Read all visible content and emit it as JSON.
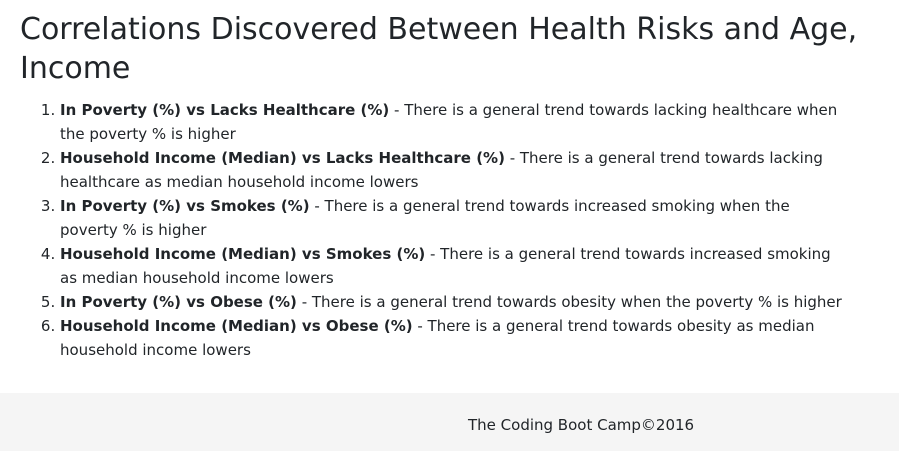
{
  "page": {
    "title": "Correlations Discovered Between Health Risks and Age, Income"
  },
  "correlations": [
    {
      "label": "In Poverty (%) vs Lacks Healthcare (%)",
      "description": " - There is a general trend towards lacking healthcare when the poverty % is higher"
    },
    {
      "label": "Household Income (Median) vs Lacks Healthcare (%)",
      "description": " - There is a general trend towards lacking healthcare as median household income lowers"
    },
    {
      "label": "In Poverty (%) vs Smokes (%)",
      "description": " - There is a general trend towards increased smoking when the poverty % is higher"
    },
    {
      "label": "Household Income (Median) vs Smokes (%)",
      "description": " - There is a general trend towards increased smoking as median household income lowers"
    },
    {
      "label": "In Poverty (%) vs Obese (%)",
      "description": " - There is a general trend towards obesity when the poverty % is higher"
    },
    {
      "label": "Household Income (Median) vs Obese (%)",
      "description": " - There is a general trend towards obesity as median household income lowers"
    }
  ],
  "footer": {
    "text": "The Coding Boot Camp©2016"
  }
}
